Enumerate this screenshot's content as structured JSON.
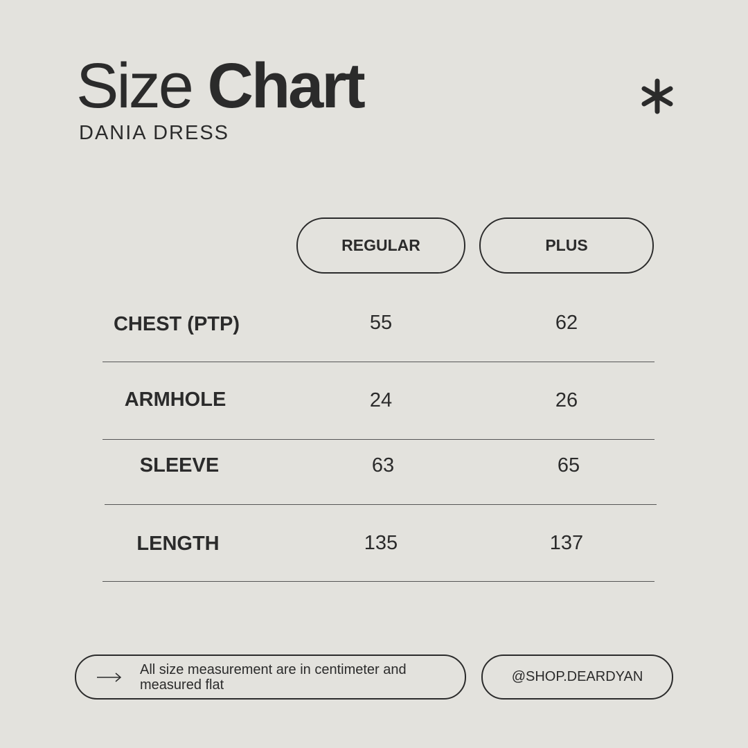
{
  "header": {
    "title_light": "Size",
    "title_bold": "Chart",
    "subtitle": "DANIA DRESS",
    "decor_icon": "asterisk-icon"
  },
  "table": {
    "columns": [
      "REGULAR",
      "PLUS"
    ],
    "rows": [
      {
        "label": "CHEST (PTP)",
        "values": [
          "55",
          "62"
        ]
      },
      {
        "label": "ARMHOLE",
        "values": [
          "24",
          "26"
        ]
      },
      {
        "label": "SLEEVE",
        "values": [
          "63",
          "65"
        ]
      },
      {
        "label": "LENGTH",
        "values": [
          "135",
          "137"
        ]
      }
    ]
  },
  "footer": {
    "note_icon": "arrow-right-icon",
    "note": "All size measurement are in centimeter and measured flat",
    "handle": "@SHOP.DEARDYAN"
  },
  "colors": {
    "background": "#e3e2dd",
    "text": "#2b2b2b"
  }
}
